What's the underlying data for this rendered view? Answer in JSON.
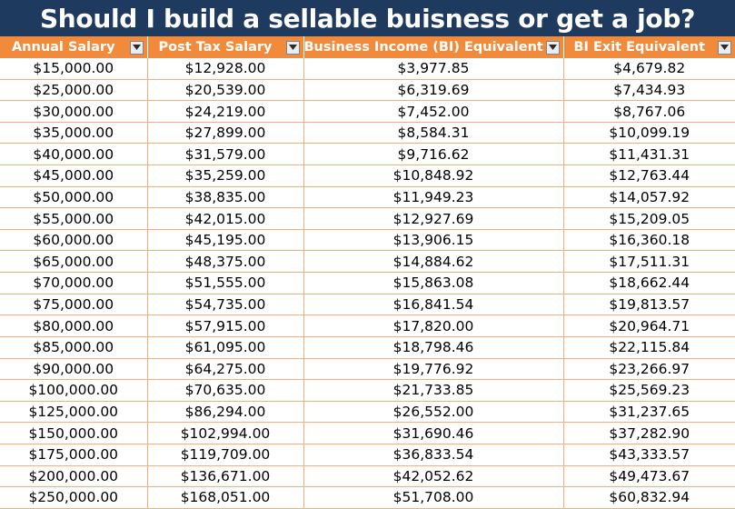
{
  "title": "Should I build a sellable buisness or get a job?",
  "colors": {
    "title_bg": "#1f3a5f",
    "header_bg": "#f28a3c",
    "grid_line": "#f3b07c"
  },
  "columns": [
    {
      "label": "Annual Salary",
      "filter_icon": "dropdown-arrow-icon"
    },
    {
      "label": "Post Tax Salary",
      "filter_icon": "dropdown-arrow-icon"
    },
    {
      "label": "Business Income (BI) Equivalent",
      "filter_icon": "dropdown-arrow-icon"
    },
    {
      "label": "BI Exit Equivalent",
      "filter_icon": "dropdown-arrow-icon"
    }
  ],
  "rows": [
    [
      "$15,000.00",
      "$12,928.00",
      "$3,977.85",
      "$4,679.82"
    ],
    [
      "$25,000.00",
      "$20,539.00",
      "$6,319.69",
      "$7,434.93"
    ],
    [
      "$30,000.00",
      "$24,219.00",
      "$7,452.00",
      "$8,767.06"
    ],
    [
      "$35,000.00",
      "$27,899.00",
      "$8,584.31",
      "$10,099.19"
    ],
    [
      "$40,000.00",
      "$31,579.00",
      "$9,716.62",
      "$11,431.31"
    ],
    [
      "$45,000.00",
      "$35,259.00",
      "$10,848.92",
      "$12,763.44"
    ],
    [
      "$50,000.00",
      "$38,835.00",
      "$11,949.23",
      "$14,057.92"
    ],
    [
      "$55,000.00",
      "$42,015.00",
      "$12,927.69",
      "$15,209.05"
    ],
    [
      "$60,000.00",
      "$45,195.00",
      "$13,906.15",
      "$16,360.18"
    ],
    [
      "$65,000.00",
      "$48,375.00",
      "$14,884.62",
      "$17,511.31"
    ],
    [
      "$70,000.00",
      "$51,555.00",
      "$15,863.08",
      "$18,662.44"
    ],
    [
      "$75,000.00",
      "$54,735.00",
      "$16,841.54",
      "$19,813.57"
    ],
    [
      "$80,000.00",
      "$57,915.00",
      "$17,820.00",
      "$20,964.71"
    ],
    [
      "$85,000.00",
      "$61,095.00",
      "$18,798.46",
      "$22,115.84"
    ],
    [
      "$90,000.00",
      "$64,275.00",
      "$19,776.92",
      "$23,266.97"
    ],
    [
      "$100,000.00",
      "$70,635.00",
      "$21,733.85",
      "$25,569.23"
    ],
    [
      "$125,000.00",
      "$86,294.00",
      "$26,552.00",
      "$31,237.65"
    ],
    [
      "$150,000.00",
      "$102,994.00",
      "$31,690.46",
      "$37,282.90"
    ],
    [
      "$175,000.00",
      "$119,709.00",
      "$36,833.54",
      "$43,333.57"
    ],
    [
      "$200,000.00",
      "$136,671.00",
      "$42,052.62",
      "$49,473.67"
    ],
    [
      "$250,000.00",
      "$168,051.00",
      "$51,708.00",
      "$60,832.94"
    ]
  ]
}
